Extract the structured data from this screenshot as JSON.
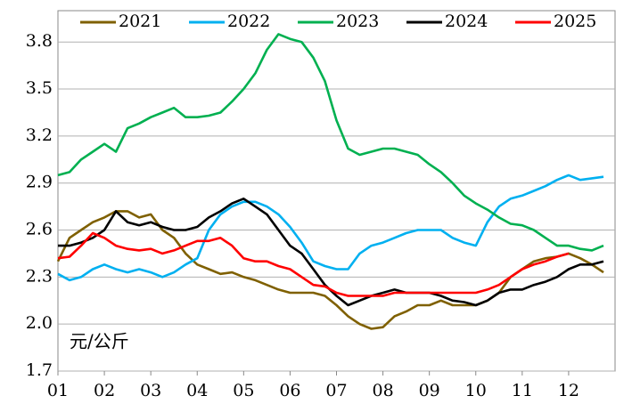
{
  "chart_data": {
    "type": "line",
    "annotation": "元/公斤",
    "categories": [
      "01",
      null,
      null,
      null,
      "02",
      null,
      null,
      null,
      "03",
      null,
      null,
      null,
      "04",
      null,
      null,
      null,
      "05",
      null,
      null,
      null,
      "06",
      null,
      null,
      null,
      "07",
      null,
      null,
      null,
      "08",
      null,
      null,
      null,
      "09",
      null,
      null,
      null,
      "10",
      null,
      null,
      null,
      "11",
      null,
      null,
      null,
      "12",
      null,
      null,
      null
    ],
    "series": [
      {
        "name": "2021",
        "color": "#7f6000",
        "values": [
          2.4,
          2.55,
          2.6,
          2.65,
          2.68,
          2.72,
          2.72,
          2.68,
          2.7,
          2.6,
          2.55,
          2.45,
          2.38,
          2.35,
          2.32,
          2.33,
          2.3,
          2.28,
          2.25,
          2.22,
          2.2,
          2.2,
          2.2,
          2.18,
          2.12,
          2.05,
          2.0,
          1.97,
          1.98,
          2.05,
          2.08,
          2.12,
          2.12,
          2.15,
          2.12,
          2.12,
          2.12,
          2.15,
          2.2,
          2.3,
          2.35,
          2.4,
          2.42,
          2.43,
          2.45,
          2.42,
          2.38,
          2.33
        ]
      },
      {
        "name": "2022",
        "color": "#00b0f0",
        "values": [
          2.32,
          2.28,
          2.3,
          2.35,
          2.38,
          2.35,
          2.33,
          2.35,
          2.33,
          2.3,
          2.33,
          2.38,
          2.42,
          2.6,
          2.7,
          2.75,
          2.78,
          2.78,
          2.75,
          2.7,
          2.62,
          2.52,
          2.4,
          2.37,
          2.35,
          2.35,
          2.45,
          2.5,
          2.52,
          2.55,
          2.58,
          2.6,
          2.6,
          2.6,
          2.55,
          2.52,
          2.5,
          2.65,
          2.75,
          2.8,
          2.82,
          2.85,
          2.88,
          2.92,
          2.95,
          2.92,
          2.93,
          2.94
        ]
      },
      {
        "name": "2023",
        "color": "#00b050",
        "values": [
          2.95,
          2.97,
          3.05,
          3.1,
          3.15,
          3.1,
          3.25,
          3.28,
          3.32,
          3.35,
          3.38,
          3.32,
          3.32,
          3.33,
          3.35,
          3.42,
          3.5,
          3.6,
          3.75,
          3.85,
          3.82,
          3.8,
          3.7,
          3.55,
          3.3,
          3.12,
          3.08,
          3.1,
          3.12,
          3.12,
          3.1,
          3.08,
          3.02,
          2.97,
          2.9,
          2.82,
          2.77,
          2.73,
          2.68,
          2.64,
          2.63,
          2.6,
          2.55,
          2.5,
          2.5,
          2.48,
          2.47,
          2.5
        ]
      },
      {
        "name": "2024",
        "color": "#000000",
        "values": [
          2.5,
          2.5,
          2.52,
          2.55,
          2.6,
          2.72,
          2.65,
          2.63,
          2.65,
          2.62,
          2.6,
          2.6,
          2.62,
          2.68,
          2.72,
          2.77,
          2.8,
          2.75,
          2.7,
          2.6,
          2.5,
          2.45,
          2.35,
          2.25,
          2.18,
          2.12,
          2.15,
          2.18,
          2.2,
          2.22,
          2.2,
          2.2,
          2.2,
          2.18,
          2.15,
          2.14,
          2.12,
          2.15,
          2.2,
          2.22,
          2.22,
          2.25,
          2.27,
          2.3,
          2.35,
          2.38,
          2.38,
          2.4
        ]
      },
      {
        "name": "2025",
        "color": "#ff0000",
        "values": [
          2.42,
          2.43,
          2.5,
          2.58,
          2.55,
          2.5,
          2.48,
          2.47,
          2.48,
          2.45,
          2.47,
          2.5,
          2.53,
          2.53,
          2.55,
          2.5,
          2.42,
          2.4,
          2.4,
          2.37,
          2.35,
          2.3,
          2.25,
          2.24,
          2.2,
          2.18,
          2.18,
          2.18,
          2.18,
          2.2,
          2.2,
          2.2,
          2.2,
          2.2,
          2.2,
          2.2,
          2.2,
          2.22,
          2.25,
          2.3,
          2.35,
          2.38,
          2.4,
          2.43,
          2.45,
          null,
          null,
          null
        ]
      }
    ],
    "ylim": [
      1.7,
      4.0
    ],
    "yticks": [
      1.7,
      {
        "value": 2,
        "label": "2.0"
      },
      2.3,
      2.6,
      2.9,
      3.2,
      3.5,
      3.8
    ],
    "grid": true,
    "legend": "top"
  }
}
